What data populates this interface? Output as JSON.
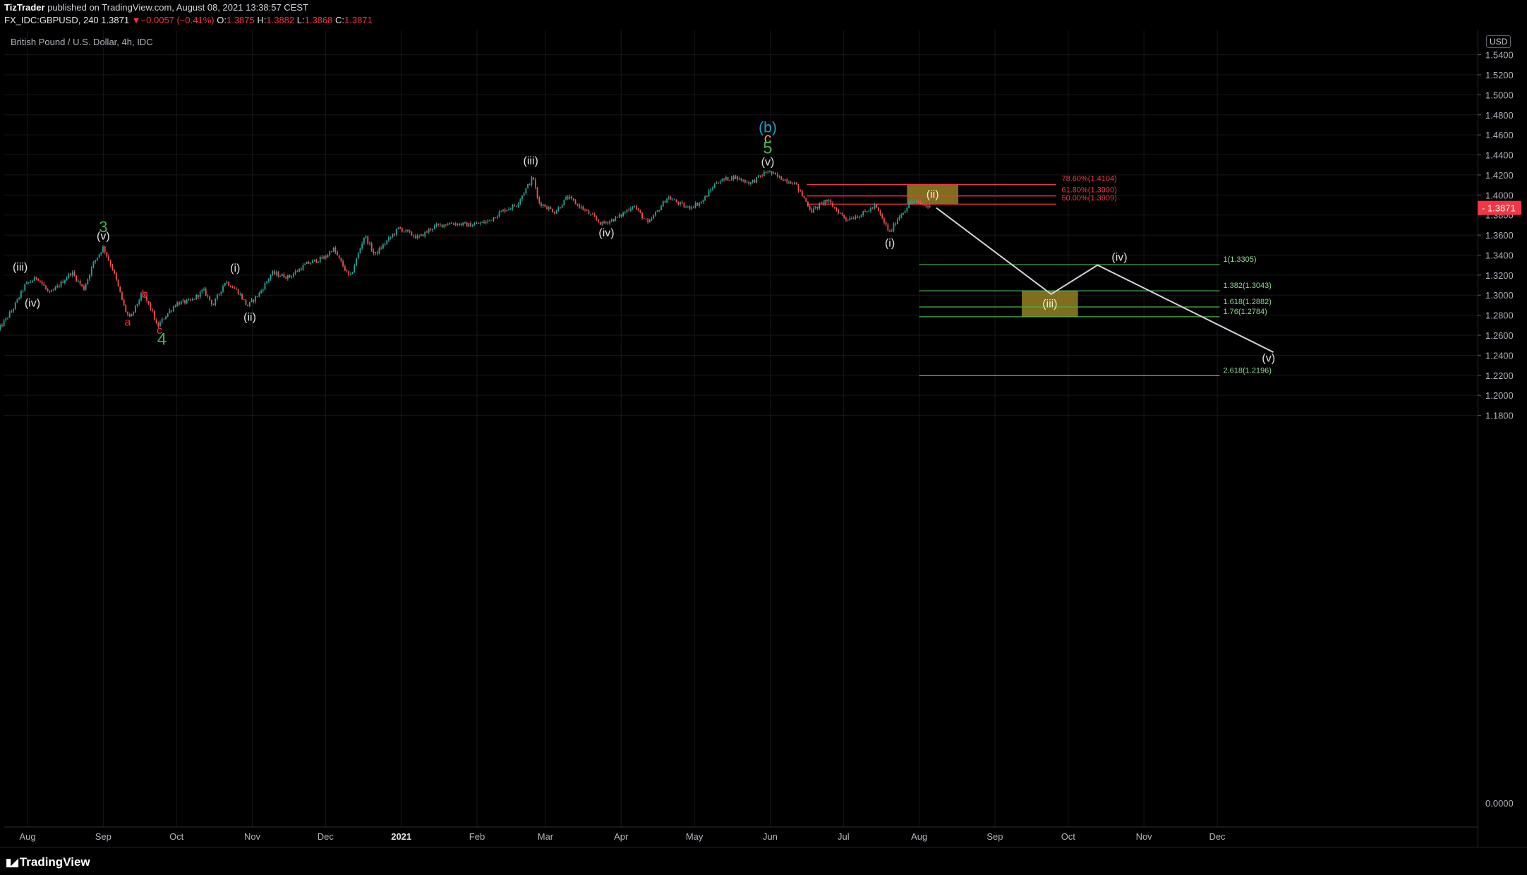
{
  "header": {
    "author": "TizTrader",
    "published_text": "published on TradingView.com, August 08, 2021 13:38:57 CEST",
    "symbol": "FX_IDC:GBPUSD, 240",
    "last": "1.3871",
    "change_arrow": "▼",
    "change": "−0.0057 (−0.41%)",
    "open_label": "O:",
    "open": "1.3875",
    "high_label": "H:",
    "high": "1.3882",
    "low_label": "L:",
    "low": "1.3868",
    "close_label": "C:",
    "close": "1.3871"
  },
  "symbol_description": "British Pound / U.S. Dollar, 4h, IDC",
  "currency_badge": "USD",
  "footer": {
    "logo_text": "TradingView",
    "logo_icon": "tradingview-logo-icon"
  },
  "colors": {
    "background": "#000000",
    "grid": "#16181d",
    "candle_up": "#26a69a",
    "candle_down": "#ef5350",
    "fib_red": "#f23645",
    "fib_green": "#4caf50",
    "projection_line": "#d1d4dc",
    "target_box": "#8f7d21",
    "price_tag": "#f23645",
    "wave_green": "#4caf50",
    "wave_cyan": "#1fa2c9",
    "wave_orange": "#f0a020",
    "wave_red": "#f23645",
    "wave_white": "#e0e0e0"
  },
  "chart_data": {
    "type": "candlestick",
    "title": "British Pound / U.S. Dollar, 4h, IDC",
    "y_range": [
      1.165,
      1.54
    ],
    "y_ticks": [
      1.18,
      1.2,
      1.22,
      1.24,
      1.26,
      1.28,
      1.3,
      1.32,
      1.34,
      1.36,
      1.38,
      1.4,
      1.42,
      1.44,
      1.46,
      1.48,
      1.5,
      1.52,
      1.54
    ],
    "y_tick_labels": [
      "1.1800",
      "1.2000",
      "1.2200",
      "1.2400",
      "1.2600",
      "1.2800",
      "1.3000",
      "1.3200",
      "1.3400",
      "1.3600",
      "1.3800",
      "1.4000",
      "1.4200",
      "1.4400",
      "1.4600",
      "1.4800",
      "1.5000",
      "1.5200",
      "1.5400"
    ],
    "y_extra_label": "0.0000",
    "x_range": [
      "2020-07-20",
      "2021-12-31"
    ],
    "x_ticks": [
      {
        "date": "2020-08-01",
        "label": "Aug"
      },
      {
        "date": "2020-09-01",
        "label": "Sep"
      },
      {
        "date": "2020-10-01",
        "label": "Oct"
      },
      {
        "date": "2020-11-01",
        "label": "Nov"
      },
      {
        "date": "2020-12-01",
        "label": "Dec"
      },
      {
        "date": "2021-01-01",
        "label": "2021"
      },
      {
        "date": "2021-02-01",
        "label": "Feb"
      },
      {
        "date": "2021-03-01",
        "label": "Mar"
      },
      {
        "date": "2021-04-01",
        "label": "Apr"
      },
      {
        "date": "2021-05-01",
        "label": "May"
      },
      {
        "date": "2021-06-01",
        "label": "Jun"
      },
      {
        "date": "2021-07-01",
        "label": "Jul"
      },
      {
        "date": "2021-08-01",
        "label": "Aug"
      },
      {
        "date": "2021-09-01",
        "label": "Sep"
      },
      {
        "date": "2021-10-01",
        "label": "Oct"
      },
      {
        "date": "2021-11-01",
        "label": "Nov"
      },
      {
        "date": "2021-12-01",
        "label": "Dec"
      }
    ],
    "last_price": 1.3871,
    "last_price_label": "1.3871",
    "price_path": [
      [
        "2020-07-20",
        1.265
      ],
      [
        "2020-07-26",
        1.286
      ],
      [
        "2020-07-31",
        1.31
      ],
      [
        "2020-08-05",
        1.318
      ],
      [
        "2020-08-10",
        1.301
      ],
      [
        "2020-08-14",
        1.31
      ],
      [
        "2020-08-19",
        1.323
      ],
      [
        "2020-08-24",
        1.306
      ],
      [
        "2020-08-28",
        1.332
      ],
      [
        "2020-09-01",
        1.348
      ],
      [
        "2020-09-05",
        1.325
      ],
      [
        "2020-09-10",
        1.285
      ],
      [
        "2020-09-12",
        1.276
      ],
      [
        "2020-09-15",
        1.292
      ],
      [
        "2020-09-17",
        1.302
      ],
      [
        "2020-09-21",
        1.284
      ],
      [
        "2020-09-23",
        1.268
      ],
      [
        "2020-09-26",
        1.278
      ],
      [
        "2020-10-01",
        1.292
      ],
      [
        "2020-10-07",
        1.294
      ],
      [
        "2020-10-12",
        1.305
      ],
      [
        "2020-10-16",
        1.29
      ],
      [
        "2020-10-21",
        1.314
      ],
      [
        "2020-10-26",
        1.304
      ],
      [
        "2020-10-30",
        1.289
      ],
      [
        "2020-11-04",
        1.302
      ],
      [
        "2020-11-09",
        1.322
      ],
      [
        "2020-11-16",
        1.318
      ],
      [
        "2020-11-23",
        1.331
      ],
      [
        "2020-12-01",
        1.338
      ],
      [
        "2020-12-04",
        1.347
      ],
      [
        "2020-12-11",
        1.317
      ],
      [
        "2020-12-17",
        1.36
      ],
      [
        "2020-12-21",
        1.34
      ],
      [
        "2020-12-31",
        1.367
      ],
      [
        "2021-01-08",
        1.357
      ],
      [
        "2021-01-14",
        1.368
      ],
      [
        "2021-01-21",
        1.372
      ],
      [
        "2021-01-29",
        1.37
      ],
      [
        "2021-02-05",
        1.373
      ],
      [
        "2021-02-12",
        1.385
      ],
      [
        "2021-02-17",
        1.39
      ],
      [
        "2021-02-24",
        1.418
      ],
      [
        "2021-02-26",
        1.393
      ],
      [
        "2021-03-05",
        1.383
      ],
      [
        "2021-03-10",
        1.398
      ],
      [
        "2021-03-17",
        1.385
      ],
      [
        "2021-03-24",
        1.371
      ],
      [
        "2021-03-31",
        1.378
      ],
      [
        "2021-04-06",
        1.39
      ],
      [
        "2021-04-12",
        1.371
      ],
      [
        "2021-04-20",
        1.398
      ],
      [
        "2021-04-28",
        1.387
      ],
      [
        "2021-05-04",
        1.393
      ],
      [
        "2021-05-10",
        1.413
      ],
      [
        "2021-05-17",
        1.418
      ],
      [
        "2021-05-24",
        1.412
      ],
      [
        "2021-05-31",
        1.424
      ],
      [
        "2021-06-04",
        1.418
      ],
      [
        "2021-06-11",
        1.412
      ],
      [
        "2021-06-18",
        1.384
      ],
      [
        "2021-06-24",
        1.395
      ],
      [
        "2021-07-02",
        1.376
      ],
      [
        "2021-07-08",
        1.38
      ],
      [
        "2021-07-14",
        1.389
      ],
      [
        "2021-07-20",
        1.362
      ],
      [
        "2021-07-23",
        1.376
      ],
      [
        "2021-07-29",
        1.394
      ],
      [
        "2021-08-03",
        1.39
      ],
      [
        "2021-08-06",
        1.3871
      ]
    ],
    "fib_retracement": [
      {
        "label": "78.60%(1.4104)",
        "value": 1.4104
      },
      {
        "label": "61.80%(1.3990)",
        "value": 1.399
      },
      {
        "label": "50.00%(1.3909)",
        "value": 1.3909
      }
    ],
    "fib_extension": [
      {
        "label": "1(1.3305)",
        "value": 1.3305
      },
      {
        "label": "1.382(1.3043)",
        "value": 1.3043
      },
      {
        "label": "1.618(1.2882)",
        "value": 1.2882
      },
      {
        "label": "1.76(1.2784)",
        "value": 1.2784
      },
      {
        "label": "2.618(1.2196)",
        "value": 1.2196
      }
    ],
    "projection_path": [
      [
        "2021-08-08",
        1.3871
      ],
      [
        "2021-09-24",
        1.301
      ],
      [
        "2021-10-13",
        1.33
      ],
      [
        "2021-12-24",
        1.243
      ]
    ],
    "target_zones": [
      {
        "label": "(ii)",
        "x": [
          "2021-07-27",
          "2021-08-17"
        ],
        "y": [
          1.3909,
          1.4104
        ]
      },
      {
        "label": "(iii)",
        "x": [
          "2021-09-12",
          "2021-10-05"
        ],
        "y": [
          1.2784,
          1.3043
        ]
      }
    ],
    "wave_labels": [
      {
        "text": "3",
        "date": "2020-09-01",
        "price": 1.363,
        "color": "wave_green",
        "size": 22
      },
      {
        "text": "(v)",
        "date": "2020-09-01",
        "price": 1.3555,
        "color": "wave_white",
        "size": 16
      },
      {
        "text": "(iii)",
        "date": "2020-07-29",
        "price": 1.3244,
        "color": "wave_white",
        "size": 16
      },
      {
        "text": "(iv)",
        "date": "2020-08-03",
        "price": 1.2885,
        "color": "wave_white",
        "size": 16
      },
      {
        "text": "b",
        "date": "2020-09-18",
        "price": 1.2975,
        "color": "wave_red",
        "size": 16
      },
      {
        "text": "a",
        "date": "2020-09-11",
        "price": 1.2695,
        "color": "wave_red",
        "size": 16
      },
      {
        "text": "c",
        "date": "2020-09-24",
        "price": 1.2615,
        "color": "wave_red",
        "size": 16
      },
      {
        "text": "4",
        "date": "2020-09-25",
        "price": 1.2505,
        "color": "wave_green",
        "size": 24
      },
      {
        "text": "(i)",
        "date": "2020-10-25",
        "price": 1.3235,
        "color": "wave_white",
        "size": 16
      },
      {
        "text": "(ii)",
        "date": "2020-10-31",
        "price": 1.2745,
        "color": "wave_white",
        "size": 16
      },
      {
        "text": "(iii)",
        "date": "2021-02-23",
        "price": 1.4305,
        "color": "wave_white",
        "size": 16
      },
      {
        "text": "(iv)",
        "date": "2021-03-26",
        "price": 1.3585,
        "color": "wave_white",
        "size": 16
      },
      {
        "text": "(b)",
        "date": "2021-05-31",
        "price": 1.4625,
        "color": "wave_cyan",
        "size": 21
      },
      {
        "text": "c",
        "date": "2021-05-31",
        "price": 1.4515,
        "color": "wave_orange",
        "size": 21
      },
      {
        "text": "5",
        "date": "2021-05-31",
        "price": 1.4415,
        "color": "wave_green",
        "size": 24
      },
      {
        "text": "(v)",
        "date": "2021-05-31",
        "price": 1.4295,
        "color": "wave_white",
        "size": 16
      },
      {
        "text": "(i)",
        "date": "2021-07-20",
        "price": 1.3485,
        "color": "wave_white",
        "size": 16
      },
      {
        "text": "(iv)",
        "date": "2021-10-22",
        "price": 1.3345,
        "color": "wave_white",
        "size": 16
      },
      {
        "text": "(v)",
        "date": "2021-12-22",
        "price": 1.2335,
        "color": "wave_white",
        "size": 16
      }
    ]
  }
}
